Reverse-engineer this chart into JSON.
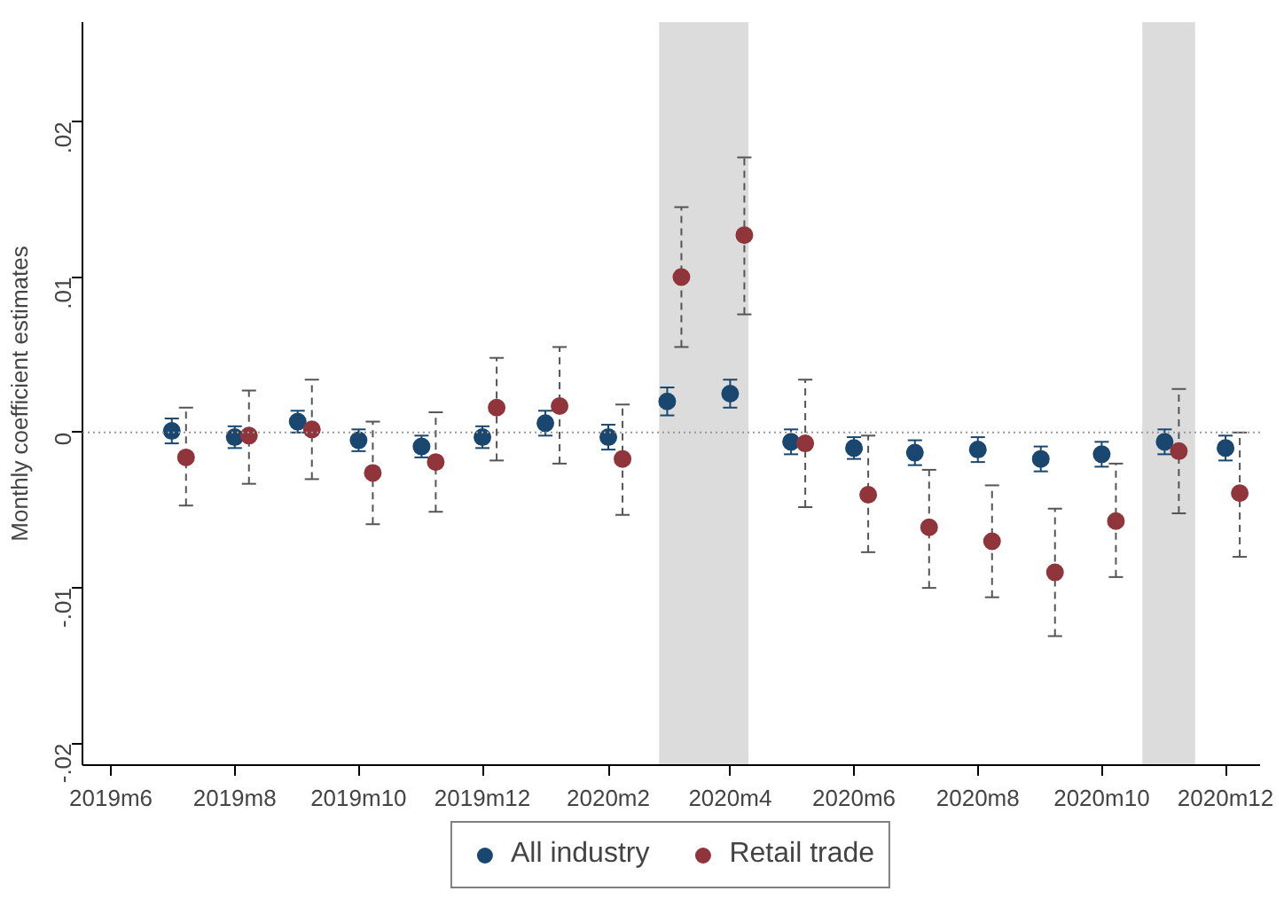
{
  "chart_data": {
    "type": "scatter",
    "ylabel": "Monthly coefficient estimates",
    "series": [
      {
        "name": "All industry",
        "color": "#1a476f",
        "line_style": "solid",
        "x": [
          "2019-07",
          "2019-08",
          "2019-09",
          "2019-10",
          "2019-11",
          "2019-12",
          "2020-01",
          "2020-02",
          "2020-03",
          "2020-04",
          "2020-05",
          "2020-06",
          "2020-07",
          "2020-08",
          "2020-09",
          "2020-10",
          "2020-11",
          "2020-12"
        ],
        "values": [
          0.0001,
          -0.0003,
          0.0007,
          -0.0005,
          -0.0009,
          -0.0003,
          0.0006,
          -0.0003,
          0.002,
          0.0025,
          -0.0006,
          -0.001,
          -0.0013,
          -0.0011,
          -0.0017,
          -0.0014,
          -0.0006,
          -0.001
        ],
        "errors": [
          0.0008,
          0.0007,
          0.0007,
          0.0007,
          0.0007,
          0.0007,
          0.0008,
          0.0008,
          0.0009,
          0.0009,
          0.0008,
          0.0007,
          0.0008,
          0.0008,
          0.0008,
          0.0008,
          0.0008,
          0.0008
        ]
      },
      {
        "name": "Retail trade",
        "color": "#90353b",
        "line_style": "dashed",
        "x": [
          "2019-07-08",
          "2019-08-08",
          "2019-09-08",
          "2019-10-08",
          "2019-11-08",
          "2019-12-08",
          "2020-01-08",
          "2020-02-08",
          "2020-03-08",
          "2020-04-08",
          "2020-05-08",
          "2020-06-08",
          "2020-07-08",
          "2020-08-08",
          "2020-09-08",
          "2020-10-08",
          "2020-11-08",
          "2020-12-08"
        ],
        "values": [
          -0.0016,
          -0.0002,
          0.0002,
          -0.0026,
          -0.0019,
          0.0016,
          0.0017,
          -0.0017,
          0.01,
          0.0127,
          -0.0007,
          -0.004,
          -0.0061,
          -0.007,
          -0.009,
          -0.0057,
          -0.0012,
          -0.0039
        ],
        "errors": [
          [
            -0.0047,
            0.0016
          ],
          [
            -0.0033,
            0.0027
          ],
          [
            -0.003,
            0.0034
          ],
          [
            -0.0059,
            0.0007
          ],
          [
            -0.0051,
            0.0013
          ],
          [
            -0.0018,
            0.0048
          ],
          [
            -0.002,
            0.0055
          ],
          [
            -0.0053,
            0.0018
          ],
          [
            0.0055,
            0.0145
          ],
          [
            0.0076,
            0.0177
          ],
          [
            -0.0048,
            0.0034
          ],
          [
            -0.0077,
            -0.0002
          ],
          [
            -0.01,
            -0.0024
          ],
          [
            -0.0106,
            -0.0034
          ],
          [
            -0.0131,
            -0.0049
          ],
          [
            -0.0093,
            -0.002
          ],
          [
            -0.0052,
            0.0028
          ],
          [
            -0.008,
            0.0
          ]
        ]
      }
    ],
    "xlim": [
      "2019-05-18",
      "2020-12-18"
    ],
    "ylim": [
      -0.0214,
      0.0264
    ],
    "xticks": [
      {
        "value": "2019-06",
        "label": "2019m6"
      },
      {
        "value": "2019-08",
        "label": "2019m8"
      },
      {
        "value": "2019-10",
        "label": "2019m10"
      },
      {
        "value": "2019-12",
        "label": "2019m12"
      },
      {
        "value": "2020-02",
        "label": "2020m2"
      },
      {
        "value": "2020-04",
        "label": "2020m4"
      },
      {
        "value": "2020-06",
        "label": "2020m6"
      },
      {
        "value": "2020-08",
        "label": "2020m8"
      },
      {
        "value": "2020-10",
        "label": "2020m10"
      },
      {
        "value": "2020-12",
        "label": "2020m12"
      }
    ],
    "yticks": [
      {
        "value": -0.02,
        "label": "-.02"
      },
      {
        "value": -0.01,
        "label": "-.01"
      },
      {
        "value": 0,
        "label": "0"
      },
      {
        "value": 0.01,
        "label": ".01"
      },
      {
        "value": 0.02,
        "label": ".02"
      }
    ],
    "ref_lines": [
      {
        "axis": "y",
        "value": 0,
        "color": "#999999",
        "line_style": "dotted"
      }
    ],
    "bands": [
      {
        "axis": "x",
        "from": "2020-02-26",
        "to": "2020-04-10",
        "color": "#dcdcdc"
      },
      {
        "axis": "x",
        "from": "2020-10-21",
        "to": "2020-11-16",
        "color": "#dcdcdc"
      }
    ],
    "marker": "circle",
    "grid": false,
    "legend": "bottom"
  }
}
